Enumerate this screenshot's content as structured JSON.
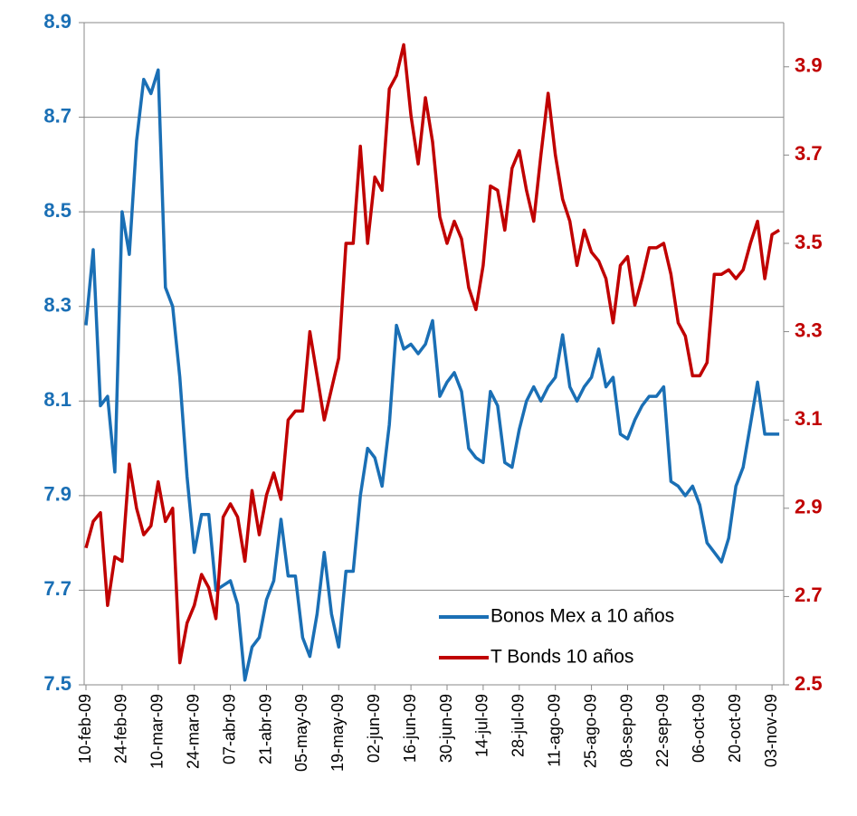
{
  "chart_data": {
    "type": "line",
    "categories": [
      "10-feb-09",
      null,
      null,
      null,
      null,
      "24-feb-09",
      null,
      null,
      null,
      null,
      "10-mar-09",
      null,
      null,
      null,
      null,
      "24-mar-09",
      null,
      null,
      null,
      null,
      "07-abr-09",
      null,
      null,
      null,
      null,
      "21-abr-09",
      null,
      null,
      null,
      null,
      "05-may-09",
      null,
      null,
      null,
      null,
      "19-may-09",
      null,
      null,
      null,
      null,
      "02-jun-09",
      null,
      null,
      null,
      null,
      "16-jun-09",
      null,
      null,
      null,
      null,
      "30-jun-09",
      null,
      null,
      null,
      null,
      "14-jul-09",
      null,
      null,
      null,
      null,
      "28-jul-09",
      null,
      null,
      null,
      null,
      "11-ago-09",
      null,
      null,
      null,
      null,
      "25-ago-09",
      null,
      null,
      null,
      null,
      "08-sep-09",
      null,
      null,
      null,
      null,
      "22-sep-09",
      null,
      null,
      null,
      null,
      "06-oct-09",
      null,
      null,
      null,
      null,
      "20-oct-09",
      null,
      null,
      null,
      null,
      "03-nov-09",
      null
    ],
    "series": [
      {
        "name": "Bonos Mex a 10 años",
        "color": "#1a6fb5",
        "axis": "y",
        "values": [
          8.26,
          8.42,
          8.09,
          8.11,
          7.95,
          8.5,
          8.41,
          8.65,
          8.78,
          8.75,
          8.8,
          8.34,
          8.3,
          8.15,
          7.94,
          7.78,
          7.86,
          7.86,
          7.7,
          7.71,
          7.72,
          7.67,
          7.51,
          7.58,
          7.6,
          7.68,
          7.72,
          7.85,
          7.73,
          7.73,
          7.6,
          7.56,
          7.65,
          7.78,
          7.65,
          7.58,
          7.74,
          7.74,
          7.9,
          8.0,
          7.98,
          7.92,
          8.05,
          8.26,
          8.21,
          8.22,
          8.2,
          8.22,
          8.27,
          8.11,
          8.14,
          8.16,
          8.12,
          8.0,
          7.98,
          7.97,
          8.12,
          8.09,
          7.97,
          7.96,
          8.04,
          8.1,
          8.13,
          8.1,
          8.13,
          8.15,
          8.24,
          8.13,
          8.1,
          8.13,
          8.15,
          8.21,
          8.13,
          8.15,
          8.03,
          8.02,
          8.06,
          8.09,
          8.11,
          8.11,
          8.13,
          7.93,
          7.92,
          7.9,
          7.92,
          7.88,
          7.8,
          7.78,
          7.76,
          7.81,
          7.92,
          7.96,
          8.05,
          8.14,
          8.03,
          8.03,
          8.03
        ]
      },
      {
        "name": "T Bonds 10 años",
        "color": "#c00000",
        "axis": "y2",
        "values": [
          2.81,
          2.87,
          2.89,
          2.68,
          2.79,
          2.78,
          3.0,
          2.9,
          2.84,
          2.86,
          2.96,
          2.87,
          2.9,
          2.55,
          2.64,
          2.68,
          2.75,
          2.72,
          2.65,
          2.88,
          2.91,
          2.88,
          2.78,
          2.94,
          2.84,
          2.93,
          2.98,
          2.92,
          3.1,
          3.12,
          3.12,
          3.3,
          3.2,
          3.1,
          3.17,
          3.24,
          3.5,
          3.5,
          3.72,
          3.5,
          3.65,
          3.62,
          3.85,
          3.88,
          3.95,
          3.79,
          3.68,
          3.83,
          3.73,
          3.56,
          3.5,
          3.55,
          3.51,
          3.4,
          3.35,
          3.45,
          3.63,
          3.62,
          3.53,
          3.67,
          3.71,
          3.62,
          3.55,
          3.7,
          3.84,
          3.7,
          3.6,
          3.55,
          3.45,
          3.53,
          3.48,
          3.46,
          3.42,
          3.32,
          3.45,
          3.47,
          3.36,
          3.42,
          3.49,
          3.49,
          3.5,
          3.43,
          3.32,
          3.29,
          3.2,
          3.2,
          3.23,
          3.43,
          3.43,
          3.44,
          3.42,
          3.44,
          3.5,
          3.55,
          3.42,
          3.52,
          3.53
        ]
      }
    ],
    "ylim": [
      7.5,
      8.9
    ],
    "yticks": [
      7.5,
      7.7,
      7.9,
      8.1,
      8.3,
      8.5,
      8.7,
      8.9
    ],
    "y2lim": [
      2.5,
      4.0
    ],
    "y2ticks": [
      2.5,
      2.7,
      2.9,
      3.1,
      3.3,
      3.5,
      3.7,
      3.9
    ],
    "grid": true,
    "legend": "lower right"
  }
}
